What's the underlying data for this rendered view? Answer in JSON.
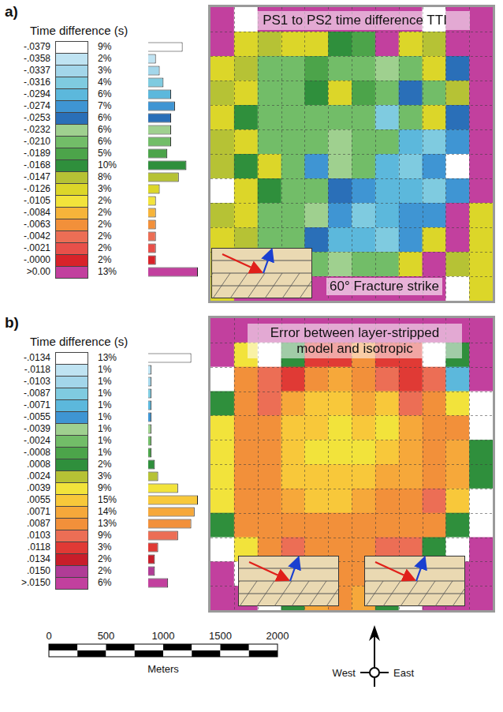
{
  "chart_data": [
    {
      "type": "heatmap",
      "label": "a)",
      "title": "PS1 to PS2  time difference TTI",
      "annotation": "60° Fracture strike",
      "grid": true,
      "tick_labels": false,
      "colorbar": {
        "title": "Time difference (s)",
        "ticks": [
          {
            "value": -0.0379,
            "label": "-.0379"
          },
          {
            "value": -0.0358,
            "label": "-.0358"
          },
          {
            "value": -0.0337,
            "label": "-.0337"
          },
          {
            "value": -0.0316,
            "label": "-.0316"
          },
          {
            "value": -0.0294,
            "label": "-.0294"
          },
          {
            "value": -0.0274,
            "label": "-.0274"
          },
          {
            "value": -0.0253,
            "label": "-.0253"
          },
          {
            "value": -0.0232,
            "label": "-.0232"
          },
          {
            "value": -0.021,
            "label": "-.0210"
          },
          {
            "value": -0.0189,
            "label": "-.0189"
          },
          {
            "value": -0.0168,
            "label": "-.0168"
          },
          {
            "value": -0.0147,
            "label": "-.0147"
          },
          {
            "value": -0.0126,
            "label": "-.0126"
          },
          {
            "value": -0.0105,
            "label": "-.0105"
          },
          {
            "value": -0.0084,
            "label": "-.0084"
          },
          {
            "value": -0.0063,
            "label": "-.0063"
          },
          {
            "value": -0.0042,
            "label": "-.0042"
          },
          {
            "value": -0.0021,
            "label": "-.0021"
          },
          {
            "value": 0,
            "label": "-.0000"
          },
          {
            "value": 0,
            "label": ">0.00"
          }
        ],
        "colors": [
          "#ffffff",
          "#bfe3f2",
          "#a3d6ea",
          "#7fcbe0",
          "#5cb8dc",
          "#3f95d3",
          "#2a6fb8",
          "#9fd08f",
          "#72bd68",
          "#4ca44a",
          "#2f8f3c",
          "#b6c235",
          "#dcd629",
          "#f2e33b",
          "#f6b43a",
          "#f2903a",
          "#ec6e55",
          "#e8504a",
          "#d8232a",
          "#c2409e"
        ]
      },
      "histogram": {
        "values": [
          9,
          2,
          3,
          4,
          6,
          7,
          6,
          6,
          6,
          5,
          10,
          8,
          3,
          2,
          2,
          2,
          2,
          2,
          2,
          13
        ],
        "value_labels": [
          "9%",
          "2%",
          "3%",
          "4%",
          "6%",
          "7%",
          "6%",
          "6%",
          "6%",
          "5%",
          "10%",
          "8%",
          "3%",
          "2%",
          "2%",
          "2%",
          "2%",
          "2%",
          "2%",
          "13%"
        ]
      },
      "cells": [
        [
          0.005,
          -0.039,
          0.005,
          0.005,
          0.005,
          0.005,
          0.005,
          0.005,
          0.005,
          -0.039,
          0.005,
          0.005
        ],
        [
          0.005,
          -0.012,
          -0.013,
          -0.012,
          -0.012,
          -0.015,
          -0.017,
          0.005,
          -0.012,
          -0.013,
          0.005,
          0.005
        ],
        [
          -0.012,
          -0.013,
          -0.02,
          -0.019,
          -0.017,
          -0.02,
          -0.02,
          -0.022,
          -0.019,
          -0.012,
          -0.024,
          0.005
        ],
        [
          -0.013,
          -0.012,
          -0.019,
          -0.02,
          -0.016,
          -0.012,
          -0.018,
          -0.02,
          -0.025,
          -0.021,
          -0.013,
          0.005
        ],
        [
          -0.012,
          -0.015,
          -0.019,
          -0.021,
          -0.02,
          -0.019,
          -0.021,
          -0.03,
          -0.019,
          -0.012,
          -0.024,
          0.005
        ],
        [
          -0.013,
          -0.012,
          -0.02,
          -0.019,
          -0.019,
          -0.022,
          -0.021,
          -0.02,
          -0.028,
          -0.03,
          -0.027,
          0.005
        ],
        [
          -0.014,
          -0.016,
          -0.012,
          -0.02,
          -0.026,
          -0.022,
          -0.02,
          -0.029,
          -0.03,
          -0.027,
          -0.039,
          0.005
        ],
        [
          -0.039,
          -0.012,
          -0.015,
          -0.019,
          -0.02,
          -0.024,
          -0.027,
          -0.029,
          -0.028,
          -0.03,
          -0.026,
          0.005
        ],
        [
          -0.013,
          -0.012,
          -0.019,
          -0.02,
          -0.022,
          -0.026,
          -0.03,
          -0.028,
          -0.027,
          -0.026,
          0.005,
          -0.012
        ],
        [
          -0.012,
          -0.013,
          -0.02,
          -0.019,
          -0.024,
          -0.028,
          -0.029,
          -0.03,
          -0.026,
          -0.012,
          0.005,
          -0.012
        ],
        [
          -0.012,
          -0.012,
          -0.013,
          -0.02,
          -0.021,
          -0.022,
          -0.02,
          -0.019,
          -0.012,
          0.005,
          -0.013,
          -0.012
        ],
        [
          -0.012,
          0.005,
          0.005,
          0.005,
          0.005,
          0.005,
          0.005,
          0.005,
          0.005,
          0.005,
          -0.039,
          -0.012
        ]
      ]
    },
    {
      "type": "heatmap",
      "label": "b)",
      "title": "Error between layer-stripped model and isotropic",
      "grid": true,
      "tick_labels": false,
      "colorbar": {
        "title": "Time difference (s)",
        "ticks": [
          {
            "value": -0.0134,
            "label": "-.0134"
          },
          {
            "value": -0.0118,
            "label": "-.0118"
          },
          {
            "value": -0.0103,
            "label": "-.0103"
          },
          {
            "value": -0.0087,
            "label": "-.0087"
          },
          {
            "value": -0.0071,
            "label": "-.0071"
          },
          {
            "value": -0.0055,
            "label": "-.0055"
          },
          {
            "value": -0.0039,
            "label": "-.0039"
          },
          {
            "value": -0.0024,
            "label": "-.0024"
          },
          {
            "value": -0.0008,
            "label": "-.0008"
          },
          {
            "value": 0.0008,
            "label": ".0008"
          },
          {
            "value": 0.0024,
            "label": ".0024"
          },
          {
            "value": 0.0039,
            "label": ".0039"
          },
          {
            "value": 0.0055,
            "label": ".0055"
          },
          {
            "value": 0.0071,
            "label": ".0071"
          },
          {
            "value": 0.0087,
            "label": ".0087"
          },
          {
            "value": 0.0103,
            "label": ".0103"
          },
          {
            "value": 0.0118,
            "label": ".0118"
          },
          {
            "value": 0.0134,
            "label": ".0134"
          },
          {
            "value": 0.015,
            "label": ".0150"
          },
          {
            "value": 0.015,
            "label": ">.0150"
          }
        ],
        "colors": [
          "#ffffff",
          "#bfe3f2",
          "#a3d6ea",
          "#7fcbe0",
          "#5cb8dc",
          "#3f95d3",
          "#9fd08f",
          "#72bd68",
          "#4ca44a",
          "#2f8f3c",
          "#b6c235",
          "#f2e33b",
          "#f8c83a",
          "#f6a83a",
          "#f2903a",
          "#ec6e55",
          "#e03a35",
          "#c81e2a",
          "#b03c96",
          "#c2409e"
        ]
      },
      "histogram": {
        "values": [
          13,
          1,
          1,
          1,
          1,
          1,
          1,
          1,
          1,
          2,
          3,
          9,
          15,
          14,
          13,
          9,
          3,
          2,
          2,
          6
        ],
        "value_labels": [
          "13%",
          "1%",
          "1%",
          "1%",
          "1%",
          "1%",
          "1%",
          "1%",
          "1%",
          "2%",
          "3%",
          "9%",
          "15%",
          "14%",
          "13%",
          "9%",
          "3%",
          "2%",
          "2%",
          "6%"
        ]
      },
      "cells": [
        [
          0.016,
          0.016,
          0.016,
          0.016,
          0.016,
          0.016,
          0.016,
          0.016,
          0.016,
          0.016,
          0.016,
          0.016
        ],
        [
          0.016,
          0.005,
          -0.014,
          0.001,
          0.012,
          0.012,
          0.009,
          0.012,
          0.012,
          -0.014,
          0.001,
          0.016
        ],
        [
          -0.014,
          0.009,
          0.011,
          0.012,
          0.009,
          0.008,
          0.009,
          0.011,
          0.012,
          0.011,
          -0.006,
          0.016
        ],
        [
          0.001,
          0.009,
          0.011,
          0.008,
          0.006,
          0.006,
          0.008,
          0.007,
          0.011,
          0.01,
          0.005,
          -0.014
        ],
        [
          0.004,
          0.009,
          0.009,
          0.007,
          0.006,
          0.005,
          0.006,
          0.005,
          0.008,
          0.009,
          0.009,
          -0.014
        ],
        [
          0.005,
          0.01,
          0.009,
          0.007,
          0.005,
          0.004,
          0.005,
          0.006,
          0.008,
          0.009,
          0.008,
          0.001
        ],
        [
          0.005,
          0.01,
          0.009,
          0.007,
          0.006,
          0.006,
          0.007,
          0.008,
          0.008,
          0.009,
          0.008,
          0.001
        ],
        [
          0.005,
          0.01,
          0.009,
          0.008,
          0.007,
          0.007,
          0.008,
          0.009,
          0.009,
          0.011,
          0.007,
          -0.014
        ],
        [
          0.001,
          0.009,
          0.01,
          0.009,
          0.009,
          0.009,
          0.009,
          0.01,
          0.01,
          0.009,
          0.001,
          -0.014
        ],
        [
          -0.014,
          0.004,
          0.01,
          0.011,
          0.01,
          0.01,
          0.01,
          0.011,
          0.011,
          0.001,
          -0.014,
          0.016
        ],
        [
          0.016,
          -0.014,
          0.001,
          0.009,
          0.009,
          0.009,
          0.009,
          0.008,
          0.001,
          -0.014,
          0.016,
          0.016
        ],
        [
          0.016,
          0.016,
          -0.014,
          0.001,
          0.008,
          0.009,
          0.008,
          0.001,
          -0.014,
          0.016,
          0.016,
          0.016
        ]
      ]
    }
  ],
  "scale_bar": {
    "ticks": [
      0,
      500,
      1000,
      1500,
      2000
    ],
    "title": "Meters"
  },
  "compass": {
    "labels": [
      "West",
      "East"
    ]
  }
}
